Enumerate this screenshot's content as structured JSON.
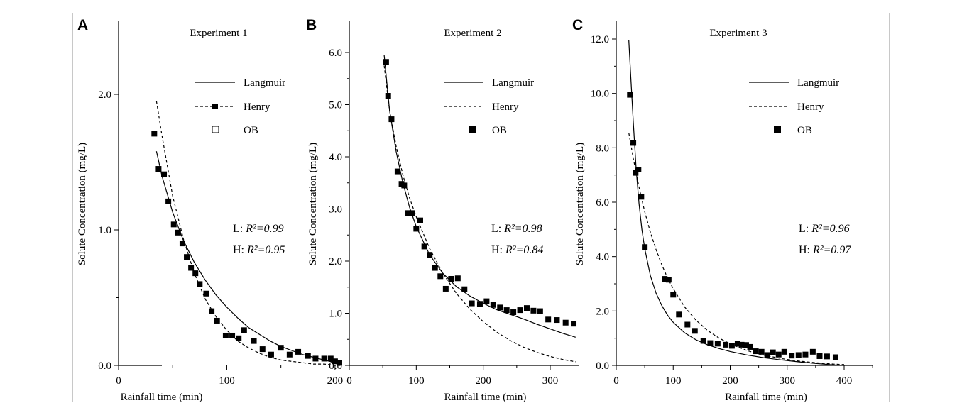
{
  "chart_data": [
    {
      "panel": "A",
      "type": "scatter",
      "title": "Experiment 1",
      "xlabel": "Rainfall time (min)",
      "ylabel": "Solute Concentration (mg/L)",
      "xlim": [
        0,
        225
      ],
      "ylim": [
        0,
        2.5
      ],
      "xticks": [
        "0",
        "100",
        "200"
      ],
      "yticks": [
        "0.0",
        "1.0",
        "2.0"
      ],
      "legend": [
        "Langmuir",
        "Henry",
        "OB"
      ],
      "legend_placement": "top-right",
      "annotations": [
        "L:",
        "R²=0.99",
        "H:",
        "R²=0.95"
      ],
      "grid": false,
      "series": [
        {
          "name": "OB",
          "kind": "points",
          "x": [
            33,
            37,
            42,
            46,
            51,
            55,
            59,
            63,
            67,
            71,
            75,
            81,
            86,
            91,
            99,
            105,
            111,
            116,
            125,
            133,
            141,
            150,
            158,
            166,
            175,
            182,
            190,
            196,
            200,
            204
          ],
          "y": [
            1.71,
            1.45,
            1.41,
            1.21,
            1.04,
            0.98,
            0.9,
            0.8,
            0.72,
            0.68,
            0.6,
            0.53,
            0.4,
            0.33,
            0.22,
            0.22,
            0.2,
            0.26,
            0.18,
            0.12,
            0.08,
            0.13,
            0.08,
            0.1,
            0.07,
            0.05,
            0.05,
            0.05,
            0.03,
            0.02
          ]
        },
        {
          "name": "Langmuir",
          "kind": "line",
          "x": [
            35,
            40,
            50,
            60,
            70,
            80,
            90,
            100,
            110,
            120,
            130,
            140,
            150,
            160,
            170,
            180,
            190,
            200,
            205
          ],
          "y": [
            1.58,
            1.4,
            1.13,
            0.92,
            0.76,
            0.63,
            0.52,
            0.43,
            0.35,
            0.28,
            0.23,
            0.18,
            0.14,
            0.11,
            0.08,
            0.06,
            0.04,
            0.02,
            0.01
          ]
        },
        {
          "name": "Henry",
          "kind": "line",
          "x": [
            35,
            40,
            50,
            60,
            70,
            80,
            90,
            100,
            110,
            120,
            130,
            140,
            150,
            160,
            170,
            180,
            190,
            200,
            205
          ],
          "y": [
            1.95,
            1.7,
            1.25,
            0.93,
            0.68,
            0.49,
            0.36,
            0.26,
            0.18,
            0.13,
            0.09,
            0.06,
            0.04,
            0.03,
            0.02,
            0.01,
            0.01,
            0.0,
            0.0
          ]
        }
      ]
    },
    {
      "panel": "B",
      "type": "scatter",
      "title": "Experiment 2",
      "xlabel": "Rainfall time (min)",
      "ylabel": "Solute Concentration (mg/L)",
      "xlim": [
        0,
        345
      ],
      "ylim": [
        0,
        6.5
      ],
      "xticks": [
        "0",
        "100",
        "200",
        "300"
      ],
      "yticks": [
        "0.0",
        "1.0",
        "2.0",
        "3.0",
        "4.0",
        "5.0",
        "6.0"
      ],
      "legend": [
        "Langmuir",
        "Henry",
        "OB"
      ],
      "legend_placement": "top-right",
      "annotations": [
        "L:",
        "R²=0.98",
        "H:",
        "R²=0.84"
      ],
      "grid": false,
      "series": [
        {
          "name": "OB",
          "kind": "points",
          "x": [
            55,
            58,
            63,
            72,
            78,
            82,
            88,
            94,
            100,
            106,
            112,
            120,
            128,
            136,
            144,
            152,
            162,
            172,
            183,
            195,
            205,
            215,
            225,
            235,
            245,
            255,
            265,
            275,
            285,
            297,
            310,
            323,
            335
          ],
          "y": [
            5.82,
            5.17,
            4.72,
            3.72,
            3.48,
            3.45,
            2.92,
            2.92,
            2.62,
            2.78,
            2.28,
            2.12,
            1.87,
            1.71,
            1.47,
            1.66,
            1.67,
            1.46,
            1.19,
            1.18,
            1.23,
            1.16,
            1.11,
            1.06,
            1.02,
            1.06,
            1.1,
            1.05,
            1.04,
            0.88,
            0.87,
            0.82,
            0.8
          ]
        },
        {
          "name": "Langmuir",
          "kind": "line",
          "x": [
            52,
            60,
            70,
            80,
            90,
            100,
            120,
            140,
            160,
            180,
            200,
            220,
            240,
            260,
            280,
            300,
            320,
            338
          ],
          "y": [
            5.95,
            4.9,
            4.1,
            3.5,
            3.03,
            2.66,
            2.12,
            1.76,
            1.51,
            1.33,
            1.19,
            1.07,
            0.98,
            0.89,
            0.79,
            0.7,
            0.61,
            0.54
          ]
        },
        {
          "name": "Henry",
          "kind": "line",
          "x": [
            52,
            60,
            70,
            80,
            90,
            100,
            120,
            140,
            160,
            180,
            200,
            220,
            240,
            260,
            280,
            300,
            320,
            338
          ],
          "y": [
            5.75,
            4.9,
            4.2,
            3.65,
            3.21,
            2.85,
            2.24,
            1.76,
            1.38,
            1.08,
            0.84,
            0.64,
            0.48,
            0.35,
            0.25,
            0.17,
            0.11,
            0.07
          ]
        }
      ]
    },
    {
      "panel": "C",
      "type": "scatter",
      "title": "Experiment 3",
      "xlabel": "Rainfall time (min)",
      "ylabel": "Solute Concentration (mg/L)",
      "xlim": [
        0,
        455
      ],
      "ylim": [
        0,
        12.5
      ],
      "xticks": [
        "0",
        "100",
        "200",
        "300",
        "400"
      ],
      "yticks": [
        "0.0",
        "2.0",
        "4.0",
        "6.0",
        "8.0",
        "10.0",
        "12.0"
      ],
      "legend": [
        "Langmuir",
        "Henry",
        "OB"
      ],
      "legend_placement": "top-right",
      "annotations": [
        "L:",
        "R²=0.96",
        "H:",
        "R²=0.97"
      ],
      "grid": false,
      "series": [
        {
          "name": "OB",
          "kind": "points",
          "x": [
            24,
            30,
            34,
            39,
            44,
            50,
            85,
            92,
            100,
            110,
            125,
            138,
            153,
            165,
            178,
            192,
            203,
            213,
            220,
            228,
            235,
            245,
            255,
            265,
            275,
            285,
            295,
            308,
            320,
            332,
            345,
            357,
            370,
            385
          ],
          "y": [
            9.95,
            8.18,
            7.08,
            7.2,
            6.2,
            4.35,
            3.18,
            3.15,
            2.6,
            1.87,
            1.5,
            1.27,
            0.9,
            0.82,
            0.8,
            0.76,
            0.72,
            0.8,
            0.76,
            0.75,
            0.68,
            0.52,
            0.5,
            0.38,
            0.48,
            0.4,
            0.5,
            0.36,
            0.38,
            0.4,
            0.5,
            0.34,
            0.33,
            0.3
          ]
        },
        {
          "name": "Langmuir",
          "kind": "line",
          "x": [
            22,
            26,
            30,
            35,
            40,
            45,
            50,
            60,
            70,
            80,
            90,
            100,
            120,
            140,
            160,
            180,
            200,
            230,
            260,
            290,
            320,
            350,
            380,
            400
          ],
          "y": [
            11.95,
            10.4,
            8.9,
            7.2,
            5.95,
            5.0,
            4.3,
            3.3,
            2.65,
            2.2,
            1.85,
            1.58,
            1.2,
            0.94,
            0.76,
            0.62,
            0.51,
            0.38,
            0.28,
            0.2,
            0.13,
            0.07,
            0.02,
            0.0
          ]
        },
        {
          "name": "Henry",
          "kind": "line",
          "x": [
            22,
            30,
            40,
            50,
            60,
            70,
            80,
            90,
            100,
            120,
            140,
            160,
            180,
            200,
            230,
            260,
            290,
            320,
            350,
            380,
            400
          ],
          "y": [
            8.55,
            7.6,
            6.55,
            5.65,
            4.9,
            4.25,
            3.7,
            3.22,
            2.82,
            2.15,
            1.66,
            1.29,
            1.01,
            0.79,
            0.54,
            0.37,
            0.25,
            0.16,
            0.1,
            0.05,
            0.03
          ]
        }
      ]
    }
  ]
}
